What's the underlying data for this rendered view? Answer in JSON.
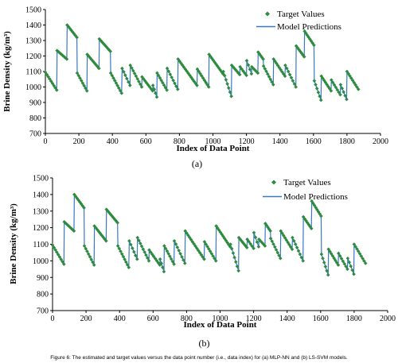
{
  "figure_caption": "Figure 6: The estimated and target values versus the data point number (i.e., data index) for (a) MLP-NN and (b) LS-SVM models.",
  "colors": {
    "target": "#2e8b3e",
    "prediction": "#3a78c2",
    "axis": "#000000"
  },
  "chart_data": [
    {
      "type": "scatter",
      "panel_label": "(a)",
      "xlabel": "Index of Data Point",
      "ylabel": "Brine Density (kg/m³)",
      "xlim": [
        0,
        2000
      ],
      "ylim": [
        700,
        1500
      ],
      "xticks": [
        0,
        200,
        400,
        600,
        800,
        1000,
        1200,
        1400,
        1600,
        1800,
        2000
      ],
      "yticks": [
        700,
        800,
        900,
        1000,
        1100,
        1200,
        1300,
        1400,
        1500
      ],
      "grid": false,
      "legend": {
        "position": "top-right",
        "entries": [
          "Target Values",
          "Model Predictions"
        ]
      },
      "series": [
        {
          "name": "Target Values",
          "kind": "points",
          "marker": "diamond"
        },
        {
          "name": "Model Predictions",
          "kind": "line"
        }
      ],
      "segments": [
        {
          "x_start": 0,
          "x_end": 68,
          "y_start": 1095,
          "y_end": 980
        },
        {
          "x_start": 70,
          "x_end": 128,
          "y_start": 1235,
          "y_end": 1180
        },
        {
          "x_start": 130,
          "x_end": 188,
          "y_start": 1400,
          "y_end": 1320
        },
        {
          "x_start": 190,
          "x_end": 248,
          "y_start": 1090,
          "y_end": 975
        },
        {
          "x_start": 250,
          "x_end": 320,
          "y_start": 1210,
          "y_end": 1120
        },
        {
          "x_start": 322,
          "x_end": 388,
          "y_start": 1310,
          "y_end": 1230
        },
        {
          "x_start": 390,
          "x_end": 455,
          "y_start": 1090,
          "y_end": 960
        },
        {
          "x_start": 458,
          "x_end": 505,
          "y_start": 1120,
          "y_end": 1010
        },
        {
          "x_start": 507,
          "x_end": 575,
          "y_start": 1140,
          "y_end": 1000
        },
        {
          "x_start": 577,
          "x_end": 640,
          "y_start": 1065,
          "y_end": 975
        },
        {
          "x_start": 642,
          "x_end": 665,
          "y_start": 1010,
          "y_end": 935
        },
        {
          "x_start": 667,
          "x_end": 725,
          "y_start": 1090,
          "y_end": 980
        },
        {
          "x_start": 727,
          "x_end": 790,
          "y_start": 1120,
          "y_end": 985
        },
        {
          "x_start": 792,
          "x_end": 905,
          "y_start": 1180,
          "y_end": 1010
        },
        {
          "x_start": 907,
          "x_end": 975,
          "y_start": 1115,
          "y_end": 1000
        },
        {
          "x_start": 977,
          "x_end": 1060,
          "y_start": 1210,
          "y_end": 1085
        },
        {
          "x_start": 1062,
          "x_end": 1110,
          "y_start": 1100,
          "y_end": 940
        },
        {
          "x_start": 1112,
          "x_end": 1160,
          "y_start": 1140,
          "y_end": 1080
        },
        {
          "x_start": 1162,
          "x_end": 1200,
          "y_start": 1130,
          "y_end": 1075
        },
        {
          "x_start": 1202,
          "x_end": 1230,
          "y_start": 1170,
          "y_end": 1085
        },
        {
          "x_start": 1232,
          "x_end": 1268,
          "y_start": 1130,
          "y_end": 1090
        },
        {
          "x_start": 1270,
          "x_end": 1300,
          "y_start": 1225,
          "y_end": 1180
        },
        {
          "x_start": 1302,
          "x_end": 1360,
          "y_start": 1135,
          "y_end": 1015
        },
        {
          "x_start": 1362,
          "x_end": 1430,
          "y_start": 1180,
          "y_end": 1070
        },
        {
          "x_start": 1432,
          "x_end": 1495,
          "y_start": 1140,
          "y_end": 1000
        },
        {
          "x_start": 1497,
          "x_end": 1545,
          "y_start": 1265,
          "y_end": 1195
        },
        {
          "x_start": 1547,
          "x_end": 1603,
          "y_start": 1360,
          "y_end": 1270
        },
        {
          "x_start": 1605,
          "x_end": 1645,
          "y_start": 1040,
          "y_end": 915
        },
        {
          "x_start": 1647,
          "x_end": 1705,
          "y_start": 1070,
          "y_end": 975
        },
        {
          "x_start": 1707,
          "x_end": 1760,
          "y_start": 1045,
          "y_end": 950
        },
        {
          "x_start": 1762,
          "x_end": 1798,
          "y_start": 1015,
          "y_end": 920
        },
        {
          "x_start": 1800,
          "x_end": 1868,
          "y_start": 1100,
          "y_end": 985
        }
      ]
    },
    {
      "type": "scatter",
      "panel_label": "(b)",
      "xlabel": "Index of Data Point",
      "ylabel": "Brine Density (kg/m³)",
      "xlim": [
        0,
        2000
      ],
      "ylim": [
        700,
        1500
      ],
      "xticks": [
        0,
        200,
        400,
        600,
        800,
        1000,
        1200,
        1400,
        1600,
        1800,
        2000
      ],
      "yticks": [
        700,
        800,
        900,
        1000,
        1100,
        1200,
        1300,
        1400,
        1500
      ],
      "grid": false,
      "legend": {
        "position": "top-right",
        "entries": [
          "Target Values",
          "Model Predictions"
        ]
      },
      "series": [
        {
          "name": "Target Values",
          "kind": "points",
          "marker": "diamond"
        },
        {
          "name": "Model Predictions",
          "kind": "line"
        }
      ],
      "segments": [
        {
          "x_start": 0,
          "x_end": 68,
          "y_start": 1095,
          "y_end": 980
        },
        {
          "x_start": 70,
          "x_end": 128,
          "y_start": 1235,
          "y_end": 1180
        },
        {
          "x_start": 130,
          "x_end": 188,
          "y_start": 1400,
          "y_end": 1320
        },
        {
          "x_start": 190,
          "x_end": 248,
          "y_start": 1090,
          "y_end": 975
        },
        {
          "x_start": 250,
          "x_end": 320,
          "y_start": 1210,
          "y_end": 1120
        },
        {
          "x_start": 322,
          "x_end": 388,
          "y_start": 1310,
          "y_end": 1230
        },
        {
          "x_start": 390,
          "x_end": 455,
          "y_start": 1090,
          "y_end": 960
        },
        {
          "x_start": 458,
          "x_end": 505,
          "y_start": 1120,
          "y_end": 1010
        },
        {
          "x_start": 507,
          "x_end": 575,
          "y_start": 1140,
          "y_end": 1000
        },
        {
          "x_start": 577,
          "x_end": 640,
          "y_start": 1065,
          "y_end": 975
        },
        {
          "x_start": 642,
          "x_end": 665,
          "y_start": 1010,
          "y_end": 935
        },
        {
          "x_start": 667,
          "x_end": 725,
          "y_start": 1090,
          "y_end": 980
        },
        {
          "x_start": 727,
          "x_end": 790,
          "y_start": 1120,
          "y_end": 985
        },
        {
          "x_start": 792,
          "x_end": 905,
          "y_start": 1180,
          "y_end": 1010
        },
        {
          "x_start": 907,
          "x_end": 975,
          "y_start": 1115,
          "y_end": 1000
        },
        {
          "x_start": 977,
          "x_end": 1060,
          "y_start": 1210,
          "y_end": 1085
        },
        {
          "x_start": 1062,
          "x_end": 1110,
          "y_start": 1100,
          "y_end": 940
        },
        {
          "x_start": 1112,
          "x_end": 1160,
          "y_start": 1140,
          "y_end": 1080
        },
        {
          "x_start": 1162,
          "x_end": 1200,
          "y_start": 1130,
          "y_end": 1075
        },
        {
          "x_start": 1202,
          "x_end": 1230,
          "y_start": 1170,
          "y_end": 1085
        },
        {
          "x_start": 1232,
          "x_end": 1268,
          "y_start": 1130,
          "y_end": 1090
        },
        {
          "x_start": 1270,
          "x_end": 1300,
          "y_start": 1225,
          "y_end": 1180
        },
        {
          "x_start": 1302,
          "x_end": 1360,
          "y_start": 1135,
          "y_end": 1015
        },
        {
          "x_start": 1362,
          "x_end": 1430,
          "y_start": 1180,
          "y_end": 1070
        },
        {
          "x_start": 1432,
          "x_end": 1495,
          "y_start": 1140,
          "y_end": 1000
        },
        {
          "x_start": 1497,
          "x_end": 1545,
          "y_start": 1265,
          "y_end": 1195
        },
        {
          "x_start": 1547,
          "x_end": 1603,
          "y_start": 1360,
          "y_end": 1270
        },
        {
          "x_start": 1605,
          "x_end": 1645,
          "y_start": 1040,
          "y_end": 915
        },
        {
          "x_start": 1647,
          "x_end": 1705,
          "y_start": 1070,
          "y_end": 975
        },
        {
          "x_start": 1707,
          "x_end": 1760,
          "y_start": 1045,
          "y_end": 950
        },
        {
          "x_start": 1762,
          "x_end": 1798,
          "y_start": 1015,
          "y_end": 920
        },
        {
          "x_start": 1800,
          "x_end": 1868,
          "y_start": 1100,
          "y_end": 985
        }
      ]
    }
  ]
}
